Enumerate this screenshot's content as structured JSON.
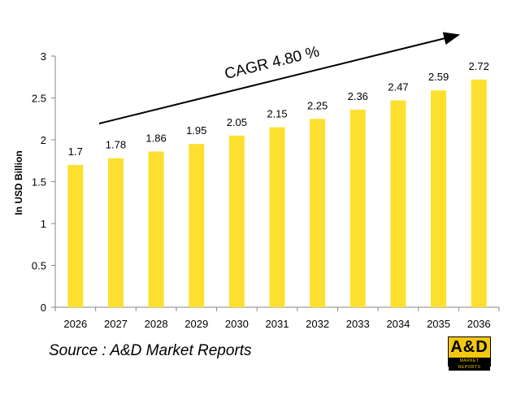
{
  "chart_data": {
    "type": "bar",
    "categories": [
      "2026",
      "2027",
      "2028",
      "2029",
      "2030",
      "2031",
      "2032",
      "2033",
      "2034",
      "2035",
      "2036"
    ],
    "values": [
      1.7,
      1.78,
      1.86,
      1.95,
      2.05,
      2.15,
      2.25,
      2.36,
      2.47,
      2.59,
      2.72
    ],
    "ylabel": "In USD Billion",
    "xlabel": "",
    "ylim": [
      0,
      3
    ],
    "yticks": [
      "0",
      "0.5",
      "1",
      "1.5",
      "2",
      "2.5",
      "3"
    ],
    "annotation": "CAGR 4.80 %",
    "bar_color": "#fde02f"
  },
  "source": "Source : A&D Market Reports",
  "logo": {
    "main": "A&D",
    "sub": "MARKET REPORTS",
    "color": "#f2c811"
  }
}
